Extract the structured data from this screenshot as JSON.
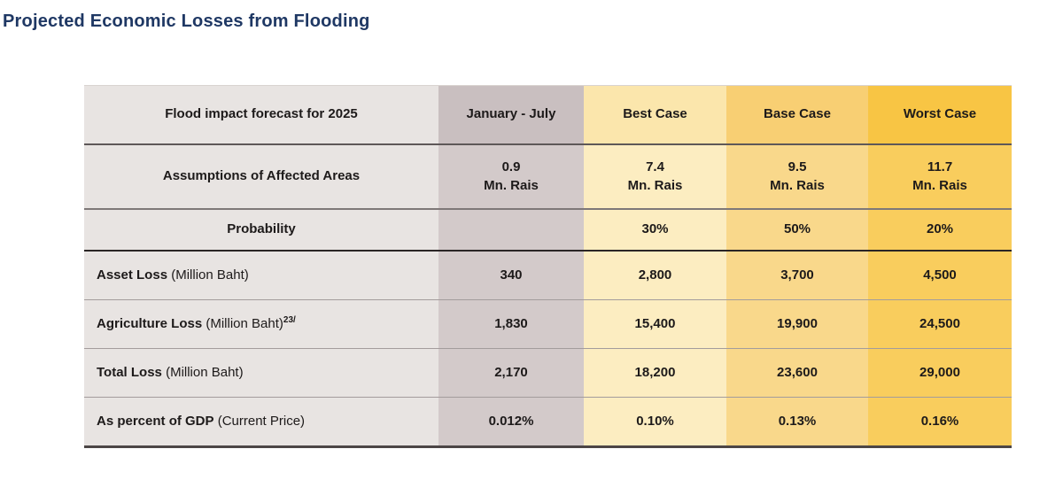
{
  "title": "Projected Economic Losses from Flooding",
  "table": {
    "header": {
      "label": "Flood impact forecast for 2025",
      "cols": [
        "January - July",
        "Best Case",
        "Base Case",
        "Worst Case"
      ]
    },
    "assumptions": {
      "label": "Assumptions of Affected Areas",
      "values": [
        "0.9",
        "7.4",
        "9.5",
        "11.7"
      ],
      "unit": "Mn. Rais"
    },
    "probability": {
      "label": "Probability",
      "values": [
        "",
        "30%",
        "50%",
        "20%"
      ]
    },
    "asset": {
      "label_strong": "Asset Loss",
      "label_rest": " (Million Baht)",
      "values": [
        "340",
        "2,800",
        "3,700",
        "4,500"
      ]
    },
    "agriculture": {
      "label_strong": "Agriculture Loss",
      "label_rest": " (Million Baht)",
      "label_sup": "23/",
      "values": [
        "1,830",
        "15,400",
        "19,900",
        "24,500"
      ]
    },
    "total": {
      "label_strong": "Total Loss",
      "label_rest": " (Million Baht)",
      "values": [
        "2,170",
        "18,200",
        "23,600",
        "29,000"
      ]
    },
    "gdp": {
      "label_strong": "As percent of GDP",
      "label_rest": " (Current Price)",
      "values": [
        "0.012%",
        "0.10%",
        "0.13%",
        "0.16%"
      ]
    }
  },
  "colors": {
    "title_text": "#1F3864",
    "label_column": "#E8E4E2",
    "january_july_header": "#C9BFC0",
    "january_july_body": "#D3CACA",
    "best_case_header": "#FBE6AC",
    "best_case_body": "#FCEDC1",
    "base_case_header": "#F8CF73",
    "base_case_body": "#F9D88B",
    "worst_case_header": "#F8C544",
    "worst_case_body": "#F9CD5D",
    "cell_text": "#1D1A1A"
  },
  "chart_data": {
    "type": "table",
    "title": "Projected Economic Losses from Flooding",
    "columns": [
      "Flood impact forecast for 2025",
      "January - July",
      "Best Case",
      "Base Case",
      "Worst Case"
    ],
    "rows": [
      [
        "Assumptions of Affected Areas",
        "0.9 Mn. Rais",
        "7.4 Mn. Rais",
        "9.5 Mn. Rais",
        "11.7 Mn. Rais"
      ],
      [
        "Probability",
        "",
        "30%",
        "50%",
        "20%"
      ],
      [
        "Asset Loss (Million Baht)",
        "340",
        "2,800",
        "3,700",
        "4,500"
      ],
      [
        "Agriculture Loss (Million Baht)23/",
        "1,830",
        "15,400",
        "19,900",
        "24,500"
      ],
      [
        "Total Loss (Million Baht)",
        "2,170",
        "18,200",
        "23,600",
        "29,000"
      ],
      [
        "As percent of GDP (Current Price)",
        "0.012%",
        "0.10%",
        "0.13%",
        "0.16%"
      ]
    ],
    "notes": "Case probabilities: Best 30%, Base 50%, Worst 20%. Footnote marker 23/ on Agriculture Loss row."
  }
}
